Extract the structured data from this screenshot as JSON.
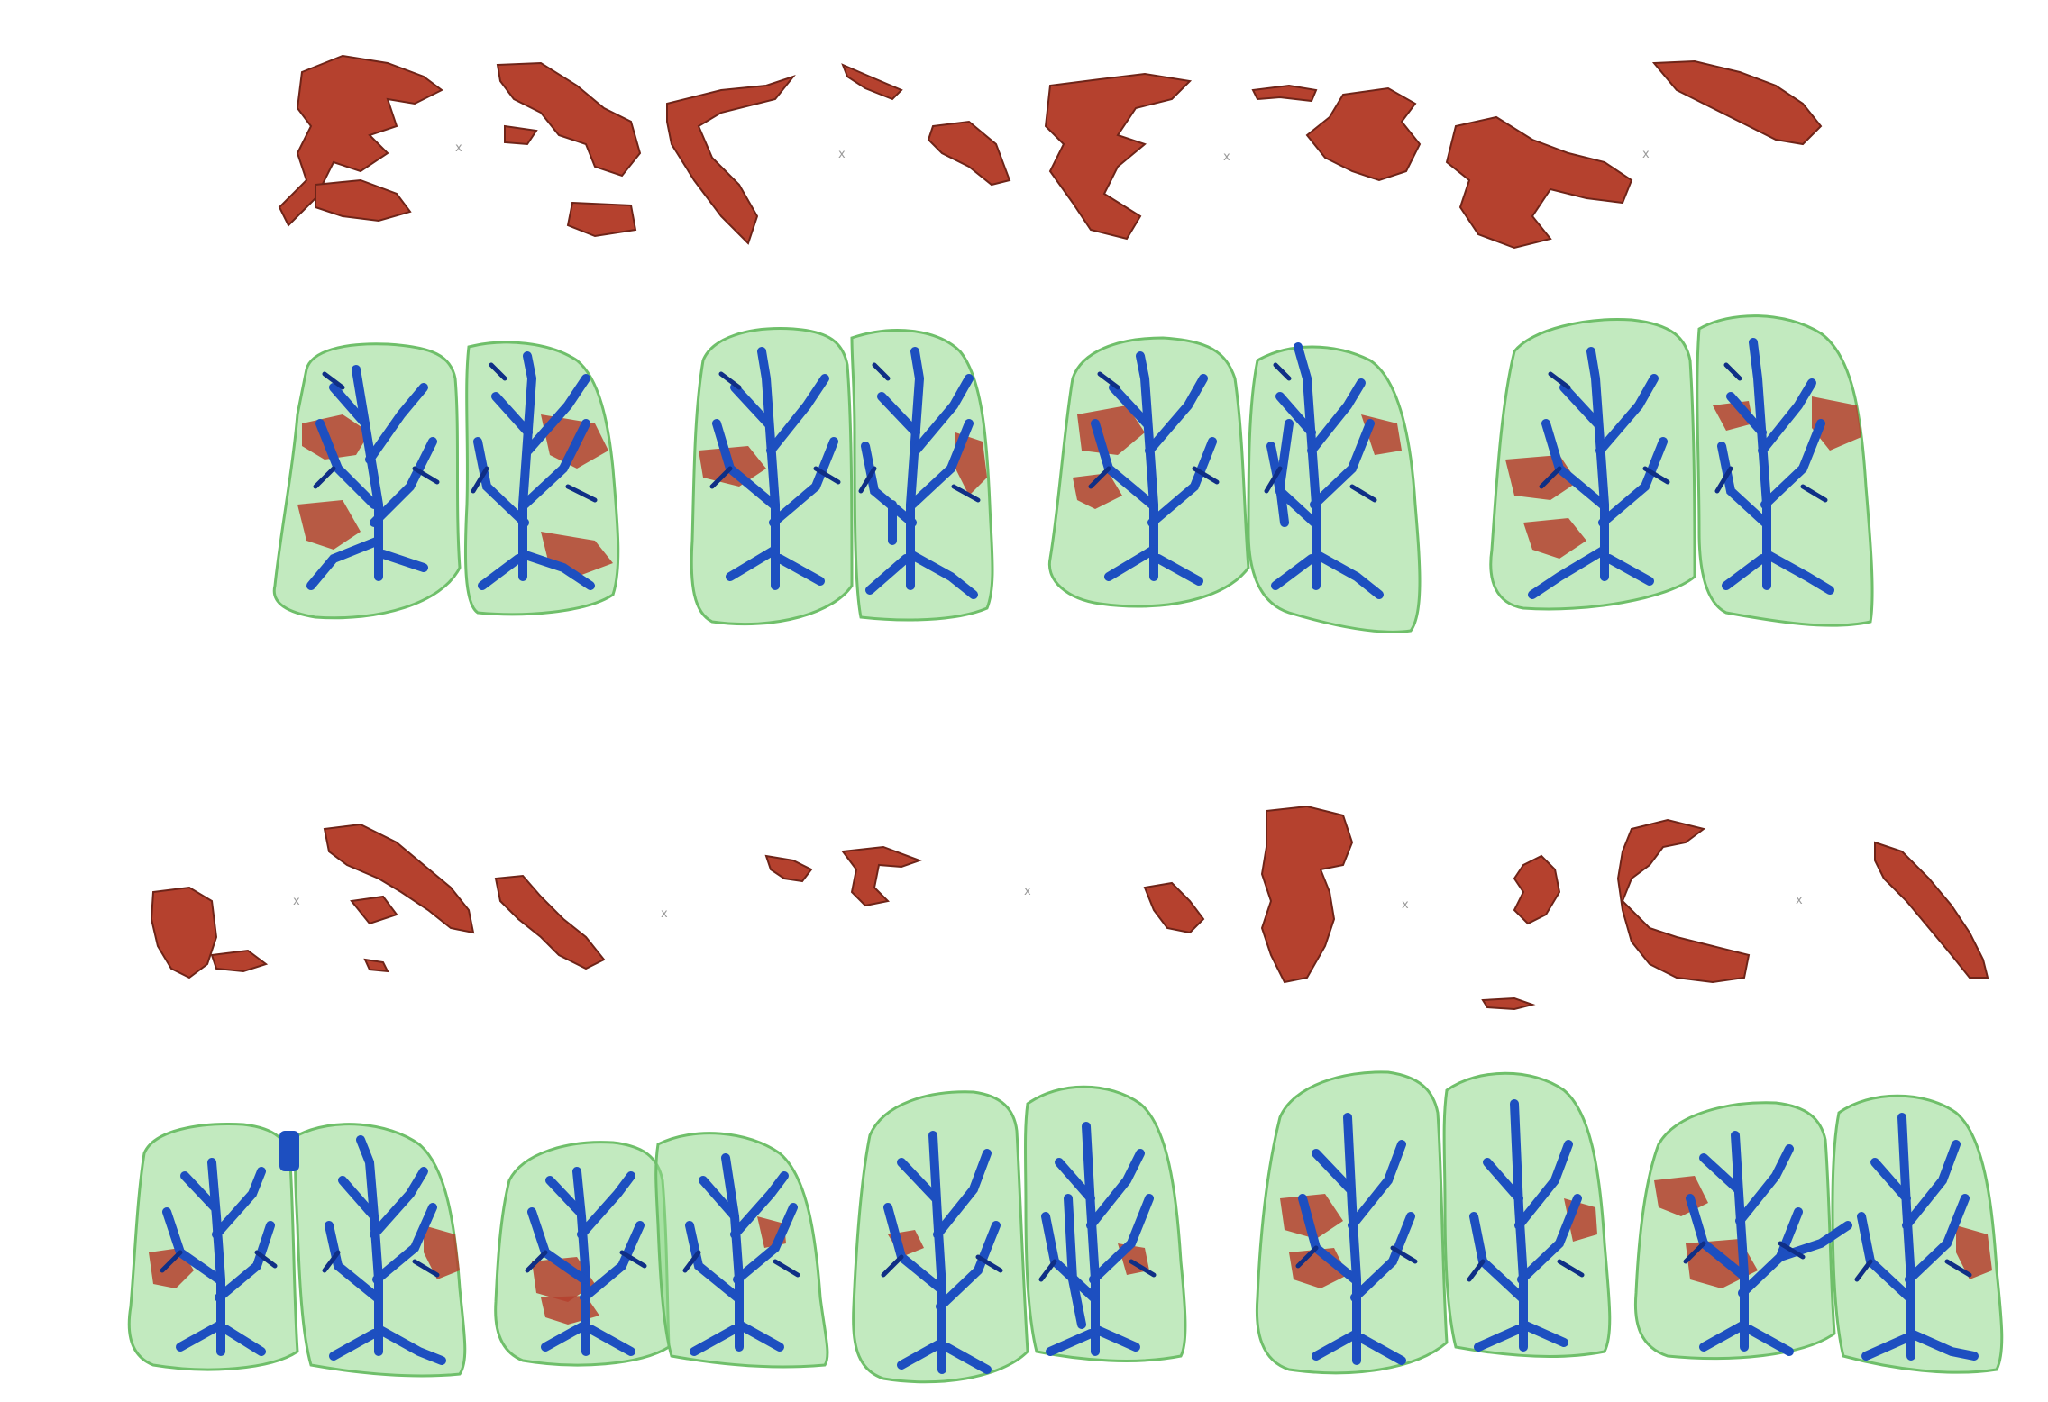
{
  "colors": {
    "background": "#ffffff",
    "lesion": "#b5412e",
    "lesion_dark": "#6e2418",
    "lung": "#8fd98a",
    "lung_edge": "#6fbf6a",
    "vessel": "#1d4fc0",
    "vessel_dark": "#0f2f86",
    "marker": "#9a9a9a"
  },
  "groups": [
    {
      "id": "group-1",
      "marker_symbols": [
        "x",
        "x",
        "x",
        "x"
      ],
      "lesion_case_count": 5,
      "lung_case_count": 4
    },
    {
      "id": "group-2",
      "marker_symbols": [
        "x",
        "x",
        "x",
        "x",
        "x"
      ],
      "lesion_case_count": 5,
      "lung_case_count": 5
    }
  ]
}
